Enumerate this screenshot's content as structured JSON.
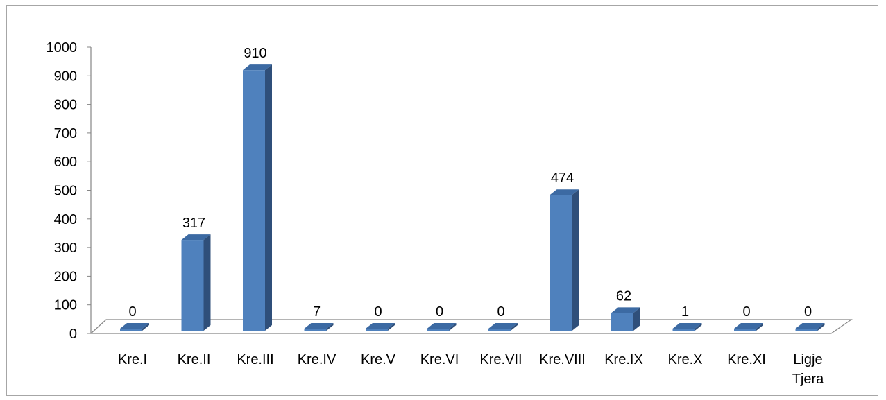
{
  "chart_data": {
    "type": "bar",
    "categories": [
      [
        "Kre.I"
      ],
      [
        "Kre.II"
      ],
      [
        "Kre.III"
      ],
      [
        "Kre.IV"
      ],
      [
        "Kre.V"
      ],
      [
        "Kre.VI"
      ],
      [
        "Kre.VII"
      ],
      [
        "Kre.VIII"
      ],
      [
        "Kre.IX"
      ],
      [
        "Kre.X"
      ],
      [
        "Kre.XI"
      ],
      [
        "Ligje",
        "Tjera"
      ]
    ],
    "values": [
      0,
      317,
      910,
      7,
      0,
      0,
      0,
      474,
      62,
      1,
      0,
      0
    ],
    "data_labels": [
      "0",
      "317",
      "910",
      "7",
      "0",
      "0",
      "0",
      "474",
      "62",
      "1",
      "0",
      "0"
    ],
    "ylim": [
      0,
      1000
    ],
    "yticks": [
      0,
      100,
      200,
      300,
      400,
      500,
      600,
      700,
      800,
      900,
      1000
    ],
    "title": "",
    "xlabel": "",
    "ylabel": "",
    "grid": false,
    "legend": "none",
    "style": "3d-column",
    "colors": {
      "bar_front": "#4f81bd",
      "bar_side": "#2f4f7a",
      "bar_top": "#3c6aa3",
      "axis": "#868686"
    }
  }
}
